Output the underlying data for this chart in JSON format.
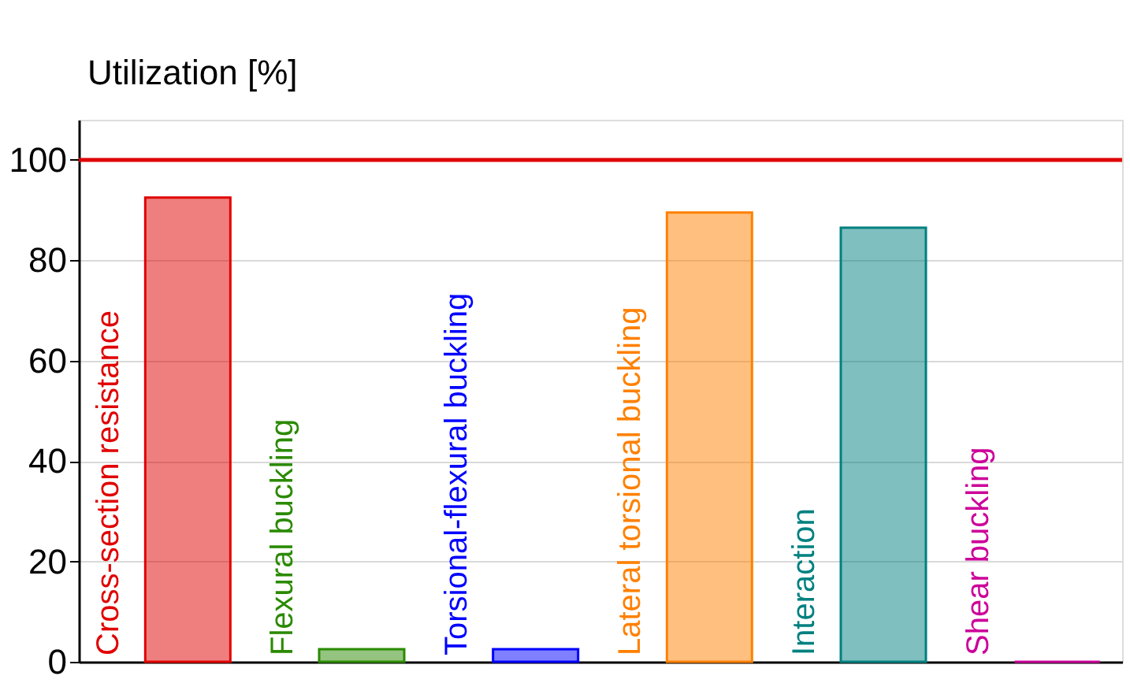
{
  "chart_data": {
    "type": "bar",
    "ylabel": "Utilization [%]",
    "categories": [
      "Cross-section resistance",
      "Flexural buckling",
      "Torsional-flexural buckling",
      "Lateral torsional buckling",
      "Interaction",
      "Shear buckling"
    ],
    "values": [
      92.5,
      2.5,
      2.5,
      89.5,
      86.5,
      0
    ],
    "colors": [
      "#e00000",
      "#2a8a00",
      "#0000ff",
      "#ff8000",
      "#008080",
      "#cc0099"
    ],
    "ylim": [
      0,
      108
    ],
    "yticks": [
      0,
      20,
      40,
      60,
      80,
      100
    ],
    "grid": "y",
    "tick_labels": "y",
    "ref_lines": [
      {
        "axis": "y",
        "value": 100,
        "color": "#e00000"
      }
    ]
  }
}
